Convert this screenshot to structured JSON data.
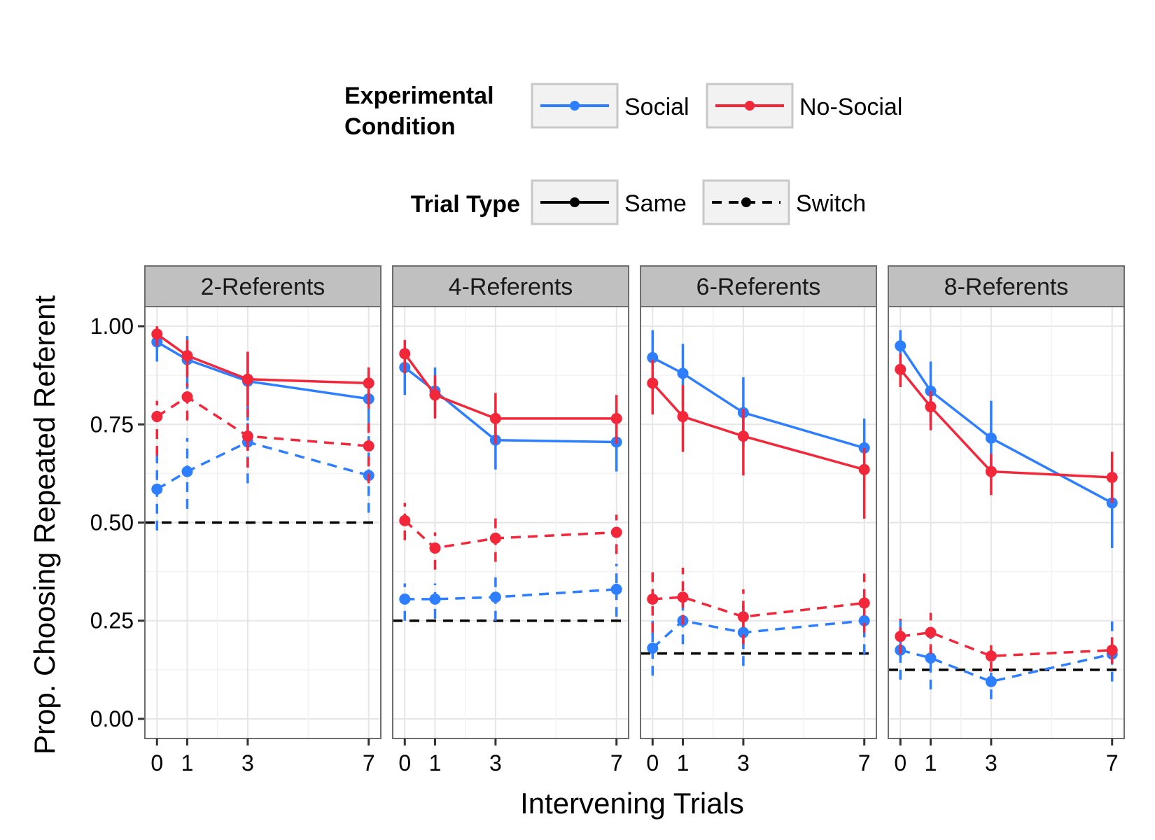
{
  "colors": {
    "social": "#2e7fff",
    "no_social": "#f2273a",
    "chance_line": "#000000",
    "strip_fill": "#c0c0c0",
    "grid": "#e6e6e6"
  },
  "chart_data": {
    "type": "line",
    "x": [
      0,
      1,
      3,
      7
    ],
    "xlabel": "Intervening Trials",
    "ylabel": "Prop. Choosing Repeated Referent",
    "ylim": [
      -0.05,
      1.05
    ],
    "yticks": [
      "0.00",
      "0.25",
      "0.50",
      "0.75",
      "1.00"
    ],
    "xticks": [
      "0",
      "1",
      "3",
      "7"
    ],
    "grid": true,
    "legend": {
      "placement": "top",
      "color_title": [
        "Experimental",
        "Condition"
      ],
      "color_entries": [
        "Social",
        "No-Social"
      ],
      "linetype_title": "Trial Type",
      "linetype_entries": [
        "Same",
        "Switch"
      ]
    },
    "panels": [
      {
        "label": "2-Referents",
        "chance": 0.5,
        "series": [
          {
            "condition": "Social",
            "trial_type": "Same",
            "y": [
              0.96,
              0.915,
              0.86,
              0.815
            ],
            "ci": [
              [
                0.91,
                0.995
              ],
              [
                0.84,
                0.975
              ],
              [
                0.76,
                0.935
              ],
              [
                0.73,
                0.885
              ]
            ]
          },
          {
            "condition": "No-Social",
            "trial_type": "Same",
            "y": [
              0.98,
              0.925,
              0.865,
              0.855
            ],
            "ci": [
              [
                0.95,
                1.0
              ],
              [
                0.87,
                0.965
              ],
              [
                0.79,
                0.935
              ],
              [
                0.79,
                0.895
              ]
            ]
          },
          {
            "condition": "Social",
            "trial_type": "Switch",
            "y": [
              0.585,
              0.63,
              0.705,
              0.62
            ],
            "ci": [
              [
                0.48,
                0.685
              ],
              [
                0.535,
                0.715
              ],
              [
                0.6,
                0.795
              ],
              [
                0.525,
                0.72
              ]
            ]
          },
          {
            "condition": "No-Social",
            "trial_type": "Switch",
            "y": [
              0.77,
              0.82,
              0.72,
              0.695
            ],
            "ci": [
              [
                0.67,
                0.81
              ],
              [
                0.76,
                0.855
              ],
              [
                0.64,
                0.79
              ],
              [
                0.6,
                0.76
              ]
            ]
          }
        ]
      },
      {
        "label": "4-Referents",
        "chance": 0.25,
        "series": [
          {
            "condition": "Social",
            "trial_type": "Same",
            "y": [
              0.895,
              0.835,
              0.71,
              0.705
            ],
            "ci": [
              [
                0.825,
                0.94
              ],
              [
                0.775,
                0.895
              ],
              [
                0.635,
                0.785
              ],
              [
                0.63,
                0.775
              ]
            ]
          },
          {
            "condition": "No-Social",
            "trial_type": "Same",
            "y": [
              0.93,
              0.825,
              0.765,
              0.765
            ],
            "ci": [
              [
                0.88,
                0.965
              ],
              [
                0.765,
                0.875
              ],
              [
                0.7,
                0.83
              ],
              [
                0.7,
                0.825
              ]
            ]
          },
          {
            "condition": "Social",
            "trial_type": "Switch",
            "y": [
              0.305,
              0.305,
              0.31,
              0.33
            ],
            "ci": [
              [
                0.25,
                0.345
              ],
              [
                0.255,
                0.345
              ],
              [
                0.25,
                0.375
              ],
              [
                0.26,
                0.395
              ]
            ]
          },
          {
            "condition": "No-Social",
            "trial_type": "Switch",
            "y": [
              0.505,
              0.435,
              0.46,
              0.475
            ],
            "ci": [
              [
                0.455,
                0.55
              ],
              [
                0.38,
                0.475
              ],
              [
                0.4,
                0.52
              ],
              [
                0.42,
                0.52
              ]
            ]
          }
        ]
      },
      {
        "label": "6-Referents",
        "chance": 0.1667,
        "series": [
          {
            "condition": "Social",
            "trial_type": "Same",
            "y": [
              0.92,
              0.88,
              0.78,
              0.69
            ],
            "ci": [
              [
                0.835,
                0.99
              ],
              [
                0.795,
                0.955
              ],
              [
                0.695,
                0.87
              ],
              [
                0.6,
                0.765
              ]
            ]
          },
          {
            "condition": "No-Social",
            "trial_type": "Same",
            "y": [
              0.855,
              0.77,
              0.72,
              0.635
            ],
            "ci": [
              [
                0.775,
                0.915
              ],
              [
                0.68,
                0.85
              ],
              [
                0.62,
                0.79
              ],
              [
                0.51,
                0.69
              ]
            ]
          },
          {
            "condition": "Social",
            "trial_type": "Switch",
            "y": [
              0.18,
              0.25,
              0.22,
              0.25
            ],
            "ci": [
              [
                0.11,
                0.25
              ],
              [
                0.19,
                0.32
              ],
              [
                0.135,
                0.3
              ],
              [
                0.165,
                0.33
              ]
            ]
          },
          {
            "condition": "No-Social",
            "trial_type": "Switch",
            "y": [
              0.305,
              0.31,
              0.26,
              0.295
            ],
            "ci": [
              [
                0.22,
                0.38
              ],
              [
                0.24,
                0.385
              ],
              [
                0.19,
                0.33
              ],
              [
                0.22,
                0.37
              ]
            ]
          }
        ]
      },
      {
        "label": "8-Referents",
        "chance": 0.125,
        "series": [
          {
            "condition": "Social",
            "trial_type": "Same",
            "y": [
              0.95,
              0.835,
              0.715,
              0.55
            ],
            "ci": [
              [
                0.885,
                0.99
              ],
              [
                0.755,
                0.91
              ],
              [
                0.625,
                0.81
              ],
              [
                0.435,
                0.665
              ]
            ]
          },
          {
            "condition": "No-Social",
            "trial_type": "Same",
            "y": [
              0.89,
              0.795,
              0.63,
              0.615
            ],
            "ci": [
              [
                0.845,
                0.93
              ],
              [
                0.735,
                0.835
              ],
              [
                0.57,
                0.675
              ],
              [
                0.55,
                0.68
              ]
            ]
          },
          {
            "condition": "Social",
            "trial_type": "Switch",
            "y": [
              0.175,
              0.155,
              0.095,
              0.165
            ],
            "ci": [
              [
                0.1,
                0.255
              ],
              [
                0.075,
                0.225
              ],
              [
                0.05,
                0.14
              ],
              [
                0.095,
                0.255
              ]
            ]
          },
          {
            "condition": "No-Social",
            "trial_type": "Switch",
            "y": [
              0.21,
              0.22,
              0.16,
              0.175
            ],
            "ci": [
              [
                0.165,
                0.255
              ],
              [
                0.165,
                0.27
              ],
              [
                0.12,
                0.2
              ],
              [
                0.14,
                0.215
              ]
            ]
          }
        ]
      }
    ]
  }
}
